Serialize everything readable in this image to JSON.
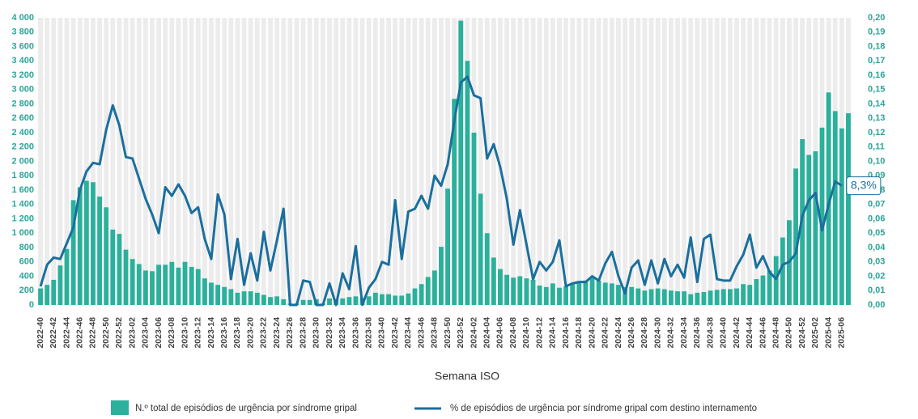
{
  "chart_data": {
    "type": "bar",
    "x_label": "Semana ISO",
    "annotation": "8,3%",
    "categories": [
      "2022-40",
      null,
      "2022-42",
      null,
      "2022-44",
      null,
      "2022-46",
      null,
      "2022-48",
      null,
      "2022-50",
      null,
      "2022-52",
      null,
      "2023-02",
      null,
      "2023-04",
      null,
      "2023-06",
      null,
      "2023-08",
      null,
      "2023-10",
      null,
      "2023-12",
      null,
      "2023-14",
      null,
      "2023-16",
      null,
      "2023-18",
      null,
      "2023-20",
      null,
      "2023-22",
      null,
      "2023-24",
      null,
      "2023-26",
      null,
      "2023-28",
      null,
      "2023-30",
      null,
      "2023-32",
      null,
      "2023-34",
      null,
      "2023-36",
      null,
      "2023-38",
      null,
      "2023-40",
      null,
      "2023-42",
      null,
      "2023-44",
      null,
      "2023-46",
      null,
      "2023-48",
      null,
      "2023-50",
      null,
      "2023-52",
      null,
      "2024-02",
      null,
      "2024-04",
      null,
      "2024-06",
      null,
      "2024-08",
      null,
      "2024-10",
      null,
      "2024-12",
      null,
      "2024-14",
      null,
      "2024-16",
      null,
      "2024-18",
      null,
      "2024-20",
      null,
      "2024-22",
      null,
      "2024-24",
      null,
      "2024-26",
      null,
      "2024-28",
      null,
      "2024-30",
      null,
      "2024-32",
      null,
      "2024-34",
      null,
      "2024-36",
      null,
      "2024-38",
      null,
      "2024-40",
      null,
      "2024-42",
      null,
      "2024-44",
      null,
      "2024-46",
      null,
      "2024-48",
      null,
      "2024-50",
      null,
      "2024-52",
      null,
      "2025-02",
      null,
      "2025-04",
      null,
      "2025-06",
      null
    ],
    "series": [
      {
        "name": "N.º total de episódios de urgência por síndrome gripal",
        "type": "bar",
        "color": "#2bb09b",
        "values": [
          230,
          280,
          350,
          550,
          780,
          1460,
          1640,
          1730,
          1710,
          1510,
          1360,
          1050,
          990,
          770,
          640,
          570,
          480,
          470,
          560,
          560,
          600,
          520,
          600,
          530,
          500,
          370,
          310,
          280,
          250,
          220,
          170,
          190,
          190,
          170,
          140,
          110,
          120,
          80,
          20,
          20,
          70,
          70,
          80,
          20,
          90,
          80,
          90,
          110,
          120,
          100,
          120,
          170,
          150,
          150,
          130,
          130,
          160,
          230,
          290,
          390,
          480,
          810,
          1620,
          2870,
          3960,
          3400,
          2400,
          1550,
          1000,
          660,
          500,
          420,
          380,
          400,
          370,
          350,
          270,
          250,
          300,
          240,
          260,
          300,
          310,
          340,
          380,
          340,
          310,
          300,
          280,
          250,
          250,
          230,
          200,
          220,
          230,
          220,
          200,
          190,
          190,
          150,
          170,
          180,
          200,
          210,
          220,
          220,
          230,
          290,
          280,
          360,
          410,
          480,
          680,
          940,
          1180,
          1900,
          2310,
          2090,
          2140,
          2470,
          2960,
          2700,
          2460,
          2670
        ]
      },
      {
        "name": "% de episódios de urgência por síndrome gripal com destino internamento",
        "type": "line",
        "axis": "y2",
        "color": "#1a6f9e",
        "values": [
          0.013,
          0.028,
          0.033,
          0.032,
          0.043,
          0.054,
          0.08,
          0.093,
          0.099,
          0.098,
          0.122,
          0.139,
          0.125,
          0.103,
          0.102,
          0.088,
          0.074,
          0.063,
          0.05,
          0.082,
          0.076,
          0.084,
          0.076,
          0.064,
          0.068,
          0.046,
          0.032,
          0.077,
          0.063,
          0.018,
          0.046,
          0.014,
          0.036,
          0.017,
          0.051,
          0.024,
          0.045,
          0.067,
          0.0,
          0.0,
          0.017,
          0.016,
          0.0,
          0.0,
          0.015,
          0.0,
          0.022,
          0.011,
          0.041,
          0.0,
          0.012,
          0.018,
          0.03,
          0.028,
          0.073,
          0.032,
          0.065,
          0.067,
          0.076,
          0.067,
          0.09,
          0.083,
          0.098,
          0.128,
          0.155,
          0.159,
          0.146,
          0.144,
          0.102,
          0.112,
          0.096,
          0.074,
          0.042,
          0.066,
          0.042,
          0.018,
          0.03,
          0.024,
          0.03,
          0.045,
          0.013,
          0.015,
          0.016,
          0.016,
          0.02,
          0.017,
          0.029,
          0.037,
          0.02,
          0.008,
          0.026,
          0.031,
          0.014,
          0.031,
          0.015,
          0.032,
          0.02,
          0.028,
          0.019,
          0.047,
          0.016,
          0.046,
          0.049,
          0.018,
          0.017,
          0.017,
          0.027,
          0.035,
          0.049,
          0.026,
          0.034,
          0.023,
          0.018,
          0.028,
          0.03,
          0.036,
          0.062,
          0.073,
          0.078,
          0.052,
          0.07,
          0.086,
          0.083,
          null
        ]
      }
    ],
    "ylim": [
      0,
      4000
    ],
    "yticks": [
      0,
      200,
      400,
      600,
      800,
      {
        "value": 1000,
        "label": "1 000"
      },
      {
        "value": 1200,
        "label": "1 200"
      },
      {
        "value": 1400,
        "label": "1 400"
      },
      {
        "value": 1600,
        "label": "1 600"
      },
      {
        "value": 1800,
        "label": "1 800"
      },
      {
        "value": 2000,
        "label": "2 000"
      },
      {
        "value": 2200,
        "label": "2 200"
      },
      {
        "value": 2400,
        "label": "2 400"
      },
      {
        "value": 2600,
        "label": "2 600"
      },
      {
        "value": 2800,
        "label": "2 800"
      },
      {
        "value": 3000,
        "label": "3 000"
      },
      {
        "value": 3200,
        "label": "3 200"
      },
      {
        "value": 3400,
        "label": "3 400"
      },
      {
        "value": 3600,
        "label": "3 600"
      },
      {
        "value": 3800,
        "label": "3 800"
      },
      {
        "value": 4000,
        "label": "4 000"
      }
    ],
    "y2lim": [
      0,
      0.2
    ],
    "y2ticks": [
      {
        "value": 0,
        "label": "0,00"
      },
      {
        "value": 0.01,
        "label": "0,01"
      },
      {
        "value": 0.02,
        "label": "0,02"
      },
      {
        "value": 0.03,
        "label": "0,03"
      },
      {
        "value": 0.04,
        "label": "0,04"
      },
      {
        "value": 0.05,
        "label": "0,05"
      },
      {
        "value": 0.06,
        "label": "0,06"
      },
      {
        "value": 0.07,
        "label": "0,07"
      },
      {
        "value": 0.08,
        "label": "0,08"
      },
      {
        "value": 0.09,
        "label": "0,09"
      },
      {
        "value": 0.1,
        "label": "0,10"
      },
      {
        "value": 0.11,
        "label": "0,11"
      },
      {
        "value": 0.12,
        "label": "0,12"
      },
      {
        "value": 0.13,
        "label": "0,13"
      },
      {
        "value": 0.14,
        "label": "0,14"
      },
      {
        "value": 0.15,
        "label": "0,15"
      },
      {
        "value": 0.16,
        "label": "0,16"
      },
      {
        "value": 0.17,
        "label": "0,17"
      },
      {
        "value": 0.18,
        "label": "0,18"
      },
      {
        "value": 0.19,
        "label": "0,19"
      },
      {
        "value": 0.2,
        "label": "0,20"
      }
    ]
  }
}
